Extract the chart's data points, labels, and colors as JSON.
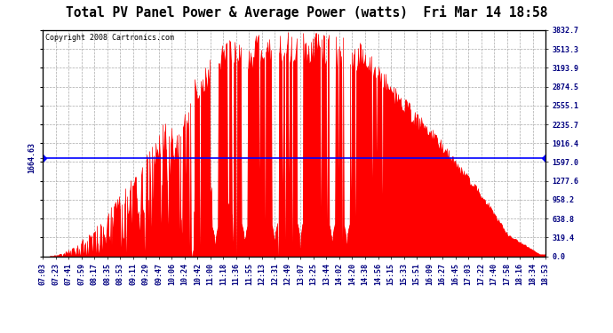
{
  "title": "Total PV Panel Power & Average Power (watts)  Fri Mar 14 18:58",
  "copyright": "Copyright 2008 Cartronics.com",
  "y_right_labels": [
    3832.7,
    3513.3,
    3193.9,
    2874.5,
    2555.1,
    2235.7,
    1916.4,
    1597.0,
    1277.6,
    958.2,
    638.8,
    319.4,
    0.0
  ],
  "average_power": 1664.63,
  "ymax": 3832.7,
  "ymin": 0.0,
  "background_color": "#ffffff",
  "plot_bg_color": "#ffffff",
  "bar_color": "#ff0000",
  "avg_line_color": "#0000ff",
  "grid_color": "#aaaaaa",
  "x_labels": [
    "07:03",
    "07:23",
    "07:41",
    "07:59",
    "08:17",
    "08:35",
    "08:53",
    "09:11",
    "09:29",
    "09:47",
    "10:06",
    "10:24",
    "10:42",
    "11:00",
    "11:18",
    "11:36",
    "11:55",
    "12:13",
    "12:31",
    "12:49",
    "13:07",
    "13:25",
    "13:44",
    "14:02",
    "14:20",
    "14:38",
    "14:56",
    "15:15",
    "15:33",
    "15:51",
    "16:09",
    "16:27",
    "16:45",
    "17:03",
    "17:22",
    "17:40",
    "17:58",
    "18:16",
    "18:34",
    "18:53"
  ],
  "title_fontsize": 10.5,
  "tick_fontsize": 6,
  "copyright_fontsize": 6
}
